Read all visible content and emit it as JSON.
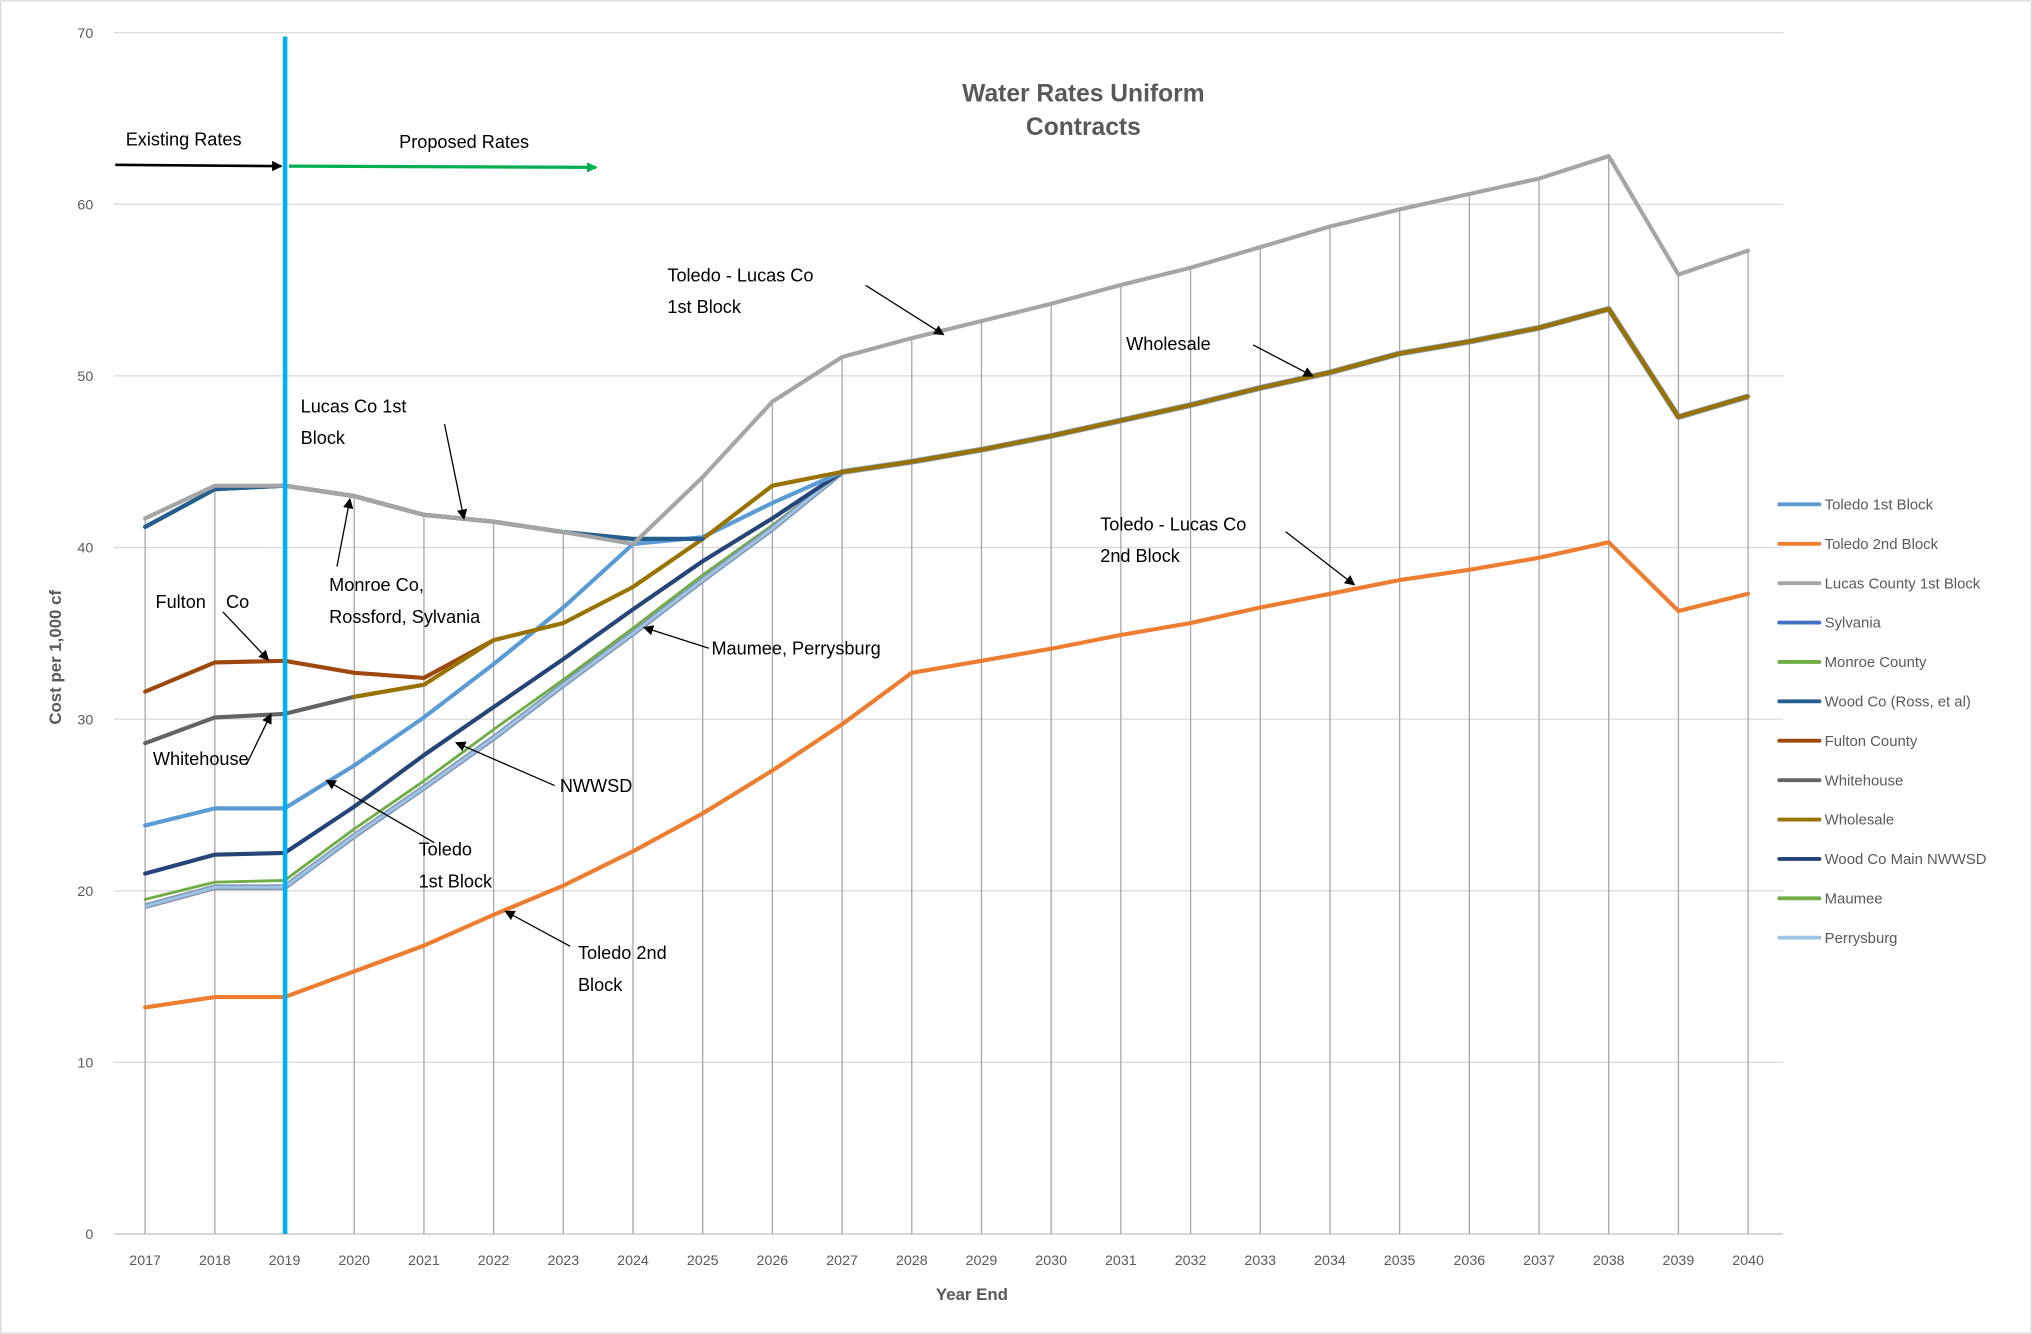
{
  "chart_data": {
    "type": "line",
    "title": [
      "Water Rates Uniform",
      "Contracts"
    ],
    "xlabel": "Year End",
    "ylabel": "Cost per 1,000 cf",
    "ylim": [
      0,
      70
    ],
    "yticks": [
      0,
      10,
      20,
      30,
      40,
      50,
      60,
      70
    ],
    "grid": true,
    "legend_position": "right",
    "x": [
      2017,
      2018,
      2019,
      2020,
      2021,
      2022,
      2023,
      2024,
      2025,
      2026,
      2027,
      2028,
      2029,
      2030,
      2031,
      2032,
      2033,
      2034,
      2035,
      2036,
      2037,
      2038,
      2039,
      2040
    ],
    "series": [
      {
        "name": "Toledo 1st Block",
        "color": "#5B9BD5",
        "values": [
          23.8,
          24.8,
          24.8,
          27.3,
          30.1,
          33.2,
          36.5,
          40.2,
          40.6,
          42.6,
          44.4,
          null,
          null,
          null,
          null,
          null,
          null,
          null,
          null,
          null,
          null,
          null,
          null,
          null
        ]
      },
      {
        "name": "Toledo 2nd Block",
        "color": "#ED7D31",
        "values": [
          13.2,
          13.8,
          13.8,
          15.3,
          16.8,
          18.6,
          20.3,
          22.3,
          24.5,
          27.0,
          29.7,
          32.7,
          33.4,
          34.1,
          34.9,
          35.6,
          36.5,
          37.3,
          38.1,
          38.7,
          39.4,
          40.3,
          36.3,
          37.3
        ]
      },
      {
        "name": "Lucas County 1st Block",
        "color": "#A5A5A5",
        "values": [
          41.7,
          43.6,
          43.6,
          43.0,
          41.9,
          41.5,
          40.9,
          40.2,
          44.1,
          48.5,
          51.1,
          52.2,
          53.2,
          54.2,
          55.3,
          56.3,
          57.5,
          58.7,
          59.7,
          60.6,
          61.5,
          62.8,
          55.9,
          57.3
        ]
      },
      {
        "name": "Sylvania",
        "color": "#4472C4",
        "values": [
          41.2,
          43.4,
          43.6,
          43.0,
          41.9,
          41.5,
          40.9,
          40.5,
          40.5,
          null,
          null,
          null,
          null,
          null,
          null,
          null,
          null,
          null,
          null,
          null,
          null,
          null,
          null,
          null
        ]
      },
      {
        "name": "Monroe County",
        "color": "#70AD47",
        "values": [
          41.2,
          43.4,
          43.6,
          43.0,
          41.9,
          41.5,
          40.9,
          40.5,
          40.5,
          null,
          null,
          null,
          null,
          null,
          null,
          null,
          null,
          null,
          null,
          null,
          null,
          null,
          null,
          null
        ]
      },
      {
        "name": "Wood Co (Ross, et al)",
        "color": "#255E91",
        "values": [
          41.2,
          43.4,
          43.6,
          43.0,
          41.9,
          41.5,
          40.9,
          40.5,
          40.5,
          null,
          null,
          null,
          null,
          null,
          null,
          null,
          null,
          null,
          null,
          null,
          null,
          null,
          null,
          null
        ]
      },
      {
        "name": "Fulton County",
        "color": "#9E480E",
        "values": [
          31.6,
          33.3,
          33.4,
          32.7,
          32.4,
          34.6,
          null,
          null,
          null,
          null,
          null,
          null,
          null,
          null,
          null,
          null,
          null,
          null,
          null,
          null,
          null,
          null,
          null,
          null
        ]
      },
      {
        "name": "Whitehouse",
        "color": "#636363",
        "values": [
          28.6,
          30.1,
          30.3,
          31.3,
          32.0,
          null,
          null,
          null,
          null,
          null,
          null,
          null,
          null,
          null,
          null,
          null,
          null,
          null,
          null,
          null,
          null,
          null,
          null,
          null
        ]
      },
      {
        "name": "Wholesale",
        "color": "#997300",
        "values": [
          null,
          null,
          null,
          31.3,
          32.0,
          34.6,
          35.6,
          37.7,
          40.5,
          43.6,
          44.4,
          45.0,
          45.7,
          46.5,
          47.4,
          48.3,
          49.3,
          50.2,
          51.3,
          52.0,
          52.8,
          53.9,
          47.6,
          48.8
        ]
      },
      {
        "name": "Wood Co Main NWWSD",
        "color": "#264478",
        "values": [
          21.0,
          22.1,
          22.2,
          24.9,
          27.9,
          30.7,
          33.5,
          36.4,
          39.2,
          41.7,
          44.4,
          null,
          null,
          null,
          null,
          null,
          null,
          null,
          null,
          null,
          null,
          null,
          null,
          null
        ]
      },
      {
        "name": "Maumee",
        "color": "#70AD47",
        "values": [
          19.5,
          20.5,
          20.6,
          23.6,
          26.4,
          29.4,
          32.3,
          35.3,
          38.4,
          41.3,
          44.4,
          null,
          null,
          null,
          null,
          null,
          null,
          null,
          null,
          null,
          null,
          null,
          null,
          null
        ]
      },
      {
        "name": "Perrysburg",
        "color": "#9DC3E6",
        "values": [
          19.1,
          20.2,
          20.2,
          23.2,
          26.0,
          28.9,
          32.0,
          35.0,
          38.1,
          41.1,
          44.4,
          45.0,
          45.7,
          46.5,
          47.4,
          48.3,
          49.3,
          50.2,
          51.3,
          52.0,
          52.8,
          53.9,
          47.6,
          48.8
        ]
      }
    ],
    "annotations": [
      {
        "text": [
          "Existing Rates"
        ]
      },
      {
        "text": [
          "Proposed Rates"
        ]
      },
      {
        "text": [
          "Toledo - Lucas Co",
          "1st Block"
        ]
      },
      {
        "text": [
          "Wholesale"
        ]
      },
      {
        "text": [
          "Lucas Co 1st",
          "Block"
        ]
      },
      {
        "text": [
          "Monroe Co,",
          "Rossford, Sylvania"
        ]
      },
      {
        "text": [
          "Fulton    Co"
        ]
      },
      {
        "text": [
          "Whitehouse"
        ]
      },
      {
        "text": [
          "NWWSD"
        ]
      },
      {
        "text": [
          "Toledo",
          "1st Block"
        ]
      },
      {
        "text": [
          "Maumee, Perrysburg"
        ]
      },
      {
        "text": [
          "Toledo - Lucas Co",
          "2nd Block"
        ]
      },
      {
        "text": [
          "Toledo 2nd",
          "Block"
        ]
      }
    ],
    "divider_year": 2019
  }
}
